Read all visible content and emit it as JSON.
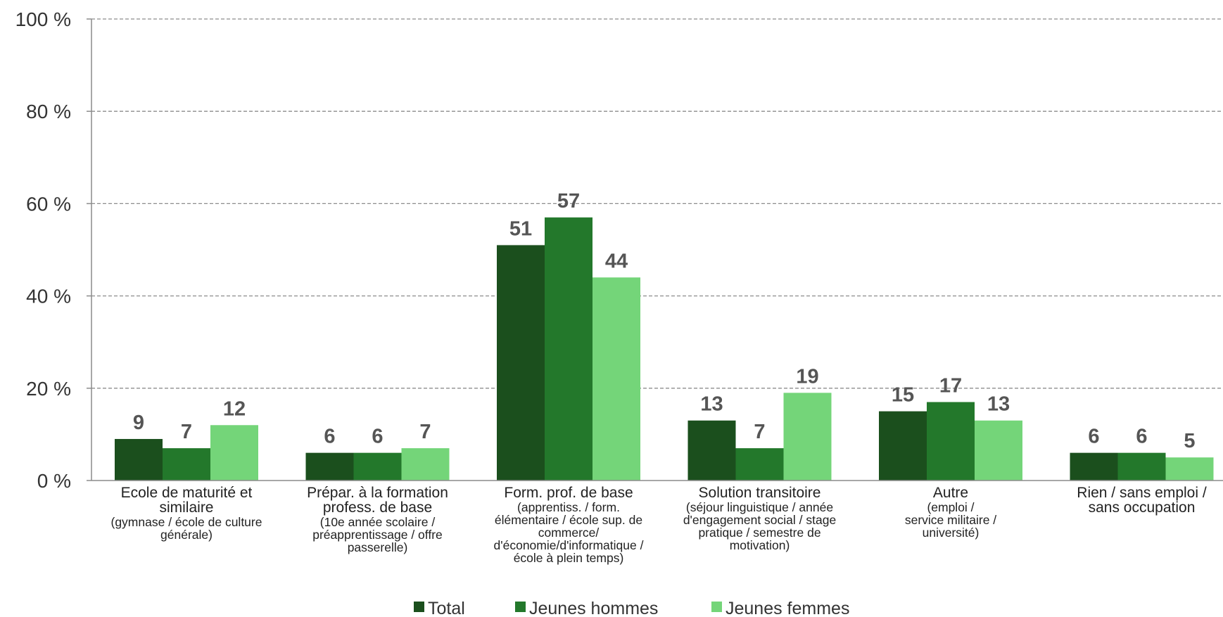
{
  "chart_data": {
    "type": "bar",
    "y_ticks": [
      "0 %",
      "20 %",
      "40 %",
      "60 %",
      "80 %",
      "100 %"
    ],
    "ylim": [
      0,
      100
    ],
    "grid": true,
    "legend_position": "bottom",
    "categories": [
      {
        "main": [
          "Ecole de maturité et",
          "similaire"
        ],
        "sub": [
          "(gymnase / école de culture",
          "générale)"
        ]
      },
      {
        "main": [
          "Prépar. à la formation",
          "profess. de base"
        ],
        "sub": [
          "(10e année scolaire /",
          "préapprentissage / offre",
          "passerelle)"
        ]
      },
      {
        "main": [
          "Form. prof. de base"
        ],
        "sub": [
          "(apprentiss. / form.",
          "élémentaire / école sup. de",
          "commerce/",
          "d'économie/d'informatique /",
          "école à plein temps)"
        ]
      },
      {
        "main": [
          "Solution transitoire"
        ],
        "sub": [
          "(séjour linguistique / année",
          "d'engagement social / stage",
          "pratique / semestre de",
          "motivation)"
        ]
      },
      {
        "main": [
          "Autre"
        ],
        "sub": [
          "(emploi /",
          "service militaire /",
          "université)"
        ]
      },
      {
        "main": [
          "Rien / sans emploi /",
          "sans occupation"
        ],
        "sub": []
      }
    ],
    "series": [
      {
        "name": "Total",
        "color": "#1b4f1d",
        "values": [
          9,
          6,
          51,
          13,
          15,
          6
        ]
      },
      {
        "name": "Jeunes hommes",
        "color": "#23782b",
        "values": [
          7,
          6,
          57,
          7,
          17,
          6
        ]
      },
      {
        "name": "Jeunes femmes",
        "color": "#74d579",
        "values": [
          12,
          7,
          44,
          19,
          13,
          5
        ]
      }
    ]
  }
}
